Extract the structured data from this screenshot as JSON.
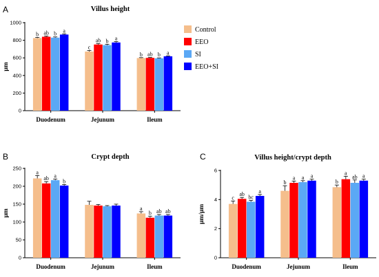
{
  "legend": [
    {
      "name": "Control",
      "color": "#F5BE8C"
    },
    {
      "name": "EEO",
      "color": "#FF0000"
    },
    {
      "name": "SI",
      "color": "#5BA8F5"
    },
    {
      "name": "EEO+SI",
      "color": "#0000FF"
    }
  ],
  "chart_data": [
    {
      "panel": "A",
      "type": "bar",
      "title": "Villus height",
      "ylabel": "μm",
      "ylim": [
        0,
        1000
      ],
      "yticks": [
        0,
        200,
        400,
        600,
        800,
        1000
      ],
      "categories": [
        "Duodenum",
        "Jejunum",
        "Ileum"
      ],
      "series": [
        {
          "name": "Control",
          "values": [
            825,
            672,
            598
          ],
          "errors": [
            8,
            12,
            5
          ],
          "letters": [
            "b",
            "c",
            "b"
          ]
        },
        {
          "name": "EEO",
          "values": [
            840,
            752,
            600
          ],
          "errors": [
            8,
            10,
            5
          ],
          "letters": [
            "ab",
            "ab",
            "ab"
          ]
        },
        {
          "name": "SI",
          "values": [
            830,
            745,
            595
          ],
          "errors": [
            8,
            10,
            5
          ],
          "letters": [
            "b",
            "b",
            "b"
          ]
        },
        {
          "name": "EEO+SI",
          "values": [
            865,
            775,
            618
          ],
          "errors": [
            8,
            10,
            5
          ],
          "letters": [
            "a",
            "a",
            "a"
          ]
        }
      ]
    },
    {
      "panel": "B",
      "type": "bar",
      "title": "Crypt depth",
      "ylabel": "μm",
      "ylim": [
        0,
        250
      ],
      "yticks": [
        0,
        50,
        100,
        150,
        200,
        250
      ],
      "categories": [
        "Duodenum",
        "Jejunum",
        "Ileum"
      ],
      "series": [
        {
          "name": "Control",
          "values": [
            222,
            148,
            124
          ],
          "errors": [
            8,
            10,
            5
          ],
          "letters": [
            "a",
            "",
            "a"
          ]
        },
        {
          "name": "EEO",
          "values": [
            208,
            146,
            112
          ],
          "errors": [
            5,
            3,
            4
          ],
          "letters": [
            "ab",
            "",
            "b"
          ]
        },
        {
          "name": "SI",
          "values": [
            217,
            144,
            118
          ],
          "errors": [
            3,
            2,
            3
          ],
          "letters": [
            "a",
            "",
            "ab"
          ]
        },
        {
          "name": "EEO+SI",
          "values": [
            202,
            146,
            118
          ],
          "errors": [
            3,
            4,
            3
          ],
          "letters": [
            "b",
            "",
            "ab"
          ]
        }
      ]
    },
    {
      "panel": "C",
      "type": "bar",
      "title": "Villus height/crypt depth",
      "ylabel": "μm/μm",
      "ylim": [
        0,
        6
      ],
      "yticks": [
        0,
        2,
        4,
        6
      ],
      "categories": [
        "Duodenum",
        "Jejunum",
        "Ileum"
      ],
      "series": [
        {
          "name": "Control",
          "values": [
            3.7,
            4.6,
            4.85
          ],
          "errors": [
            0.2,
            0.35,
            0.15
          ],
          "letters": [
            "c",
            "b",
            "b"
          ]
        },
        {
          "name": "EEO",
          "values": [
            4.05,
            5.15,
            5.4
          ],
          "errors": [
            0.1,
            0.12,
            0.2
          ],
          "letters": [
            "ab",
            "a",
            "a"
          ]
        },
        {
          "name": "SI",
          "values": [
            3.85,
            5.2,
            5.15
          ],
          "errors": [
            0.1,
            0.1,
            0.2
          ],
          "letters": [
            "bc",
            "a",
            "ab"
          ]
        },
        {
          "name": "EEO+SI",
          "values": [
            4.25,
            5.3,
            5.3
          ],
          "errors": [
            0.1,
            0.1,
            0.1
          ],
          "letters": [
            "a",
            "a",
            "a"
          ]
        }
      ]
    }
  ]
}
